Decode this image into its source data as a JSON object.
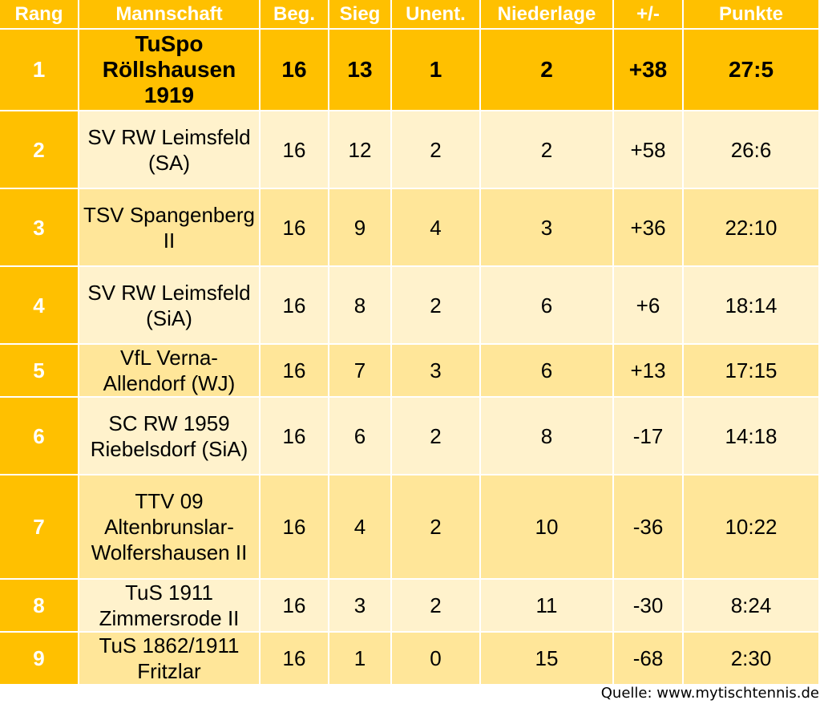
{
  "table": {
    "headers": {
      "rang": "Rang",
      "mannschaft": "Mannschaft",
      "beg": "Beg.",
      "sieg": "Sieg",
      "unent": "Unent.",
      "niederlage": "Niederlage",
      "diff": "+/-",
      "punkte": "Punkte"
    },
    "rows": [
      {
        "rank": "1",
        "team": "TuSpo Röllshausen 1919",
        "games": "16",
        "wins": "13",
        "draws": "1",
        "losses": "2",
        "diff": "+38",
        "points": "27:5"
      },
      {
        "rank": "2",
        "team": "SV RW Leimsfeld (SA)",
        "games": "16",
        "wins": "12",
        "draws": "2",
        "losses": "2",
        "diff": "+58",
        "points": "26:6"
      },
      {
        "rank": "3",
        "team": "TSV Spangenberg II",
        "games": "16",
        "wins": "9",
        "draws": "4",
        "losses": "3",
        "diff": "+36",
        "points": "22:10"
      },
      {
        "rank": "4",
        "team": "SV RW Leimsfeld (SiA)",
        "games": "16",
        "wins": "8",
        "draws": "2",
        "losses": "6",
        "diff": "+6",
        "points": "18:14"
      },
      {
        "rank": "5",
        "team": "VfL Verna-Allendorf (WJ)",
        "games": "16",
        "wins": "7",
        "draws": "3",
        "losses": "6",
        "diff": "+13",
        "points": "17:15"
      },
      {
        "rank": "6",
        "team": "SC RW 1959 Riebelsdorf (SiA)",
        "games": "16",
        "wins": "6",
        "draws": "2",
        "losses": "8",
        "diff": "-17",
        "points": "14:18"
      },
      {
        "rank": "7",
        "team": "TTV 09 Altenbrunslar-Wolfershausen II",
        "games": "16",
        "wins": "4",
        "draws": "2",
        "losses": "10",
        "diff": "-36",
        "points": "10:22"
      },
      {
        "rank": "8",
        "team": "TuS 1911 Zimmersrode II",
        "games": "16",
        "wins": "3",
        "draws": "2",
        "losses": "11",
        "diff": "-30",
        "points": "8:24"
      },
      {
        "rank": "9",
        "team": "TuS 1862/1911 Fritzlar",
        "games": "16",
        "wins": "1",
        "draws": "0",
        "losses": "15",
        "diff": "-68",
        "points": "2:30"
      }
    ]
  },
  "source": "Quelle: www.mytischtennis.de",
  "colors": {
    "header": "#ffc000",
    "row_light": "#fff2cc",
    "row_dark": "#ffe699"
  }
}
